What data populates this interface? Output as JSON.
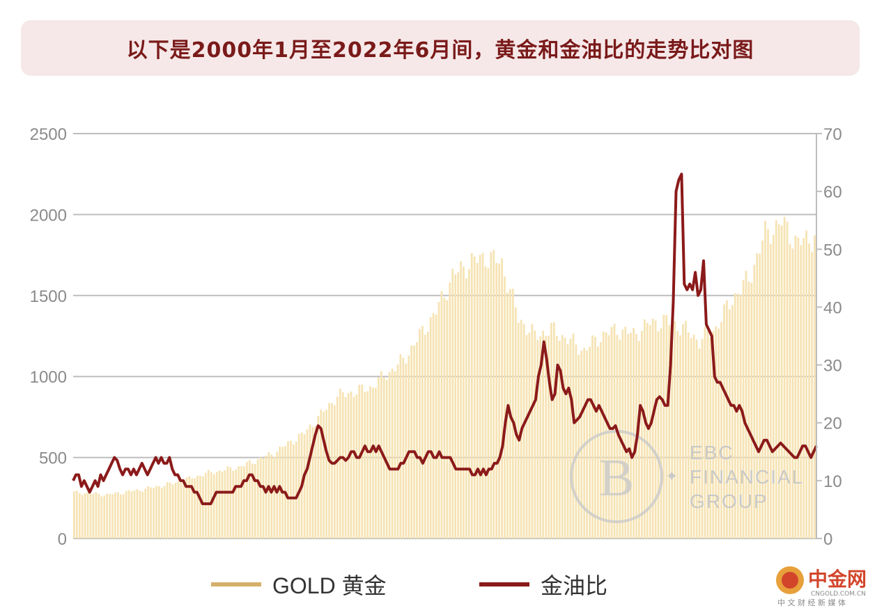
{
  "title": "以下是2000年1月至2022年6月间，黄金和金油比的走势比对图",
  "legend": {
    "gold_label": "GOLD 黄金",
    "ratio_label": "金油比"
  },
  "colors": {
    "gold": "#f6e3b3",
    "gold_legend": "#d4b06a",
    "ratio": "#8b1a1a",
    "grid": "#bdbdbd"
  },
  "watermark": {
    "brand_line1": "EBC",
    "brand_line2": "FINANCIAL",
    "brand_line3": "GROUP"
  },
  "site_logo": {
    "name": "中金网",
    "domain": "CNGOLD.COM.CN",
    "tagline": "中 文 财 经 新 媒 体"
  },
  "chart_data": {
    "type": "bar+line",
    "period": "2000-01 to 2022-06 (monthly)",
    "left_axis": {
      "ticks": [
        "0",
        "500",
        "1000",
        "1500",
        "2000",
        "2500"
      ],
      "range": [
        0,
        2500
      ]
    },
    "right_axis": {
      "ticks": [
        "0",
        "10",
        "20",
        "30",
        "40",
        "50",
        "60",
        "70"
      ],
      "range": [
        0,
        70
      ]
    },
    "series": [
      {
        "name": "GOLD 黄金",
        "type": "bar",
        "axis": "left",
        "keypoints": [
          [
            0,
            285
          ],
          [
            12,
            270
          ],
          [
            24,
            300
          ],
          [
            36,
            340
          ],
          [
            48,
            400
          ],
          [
            60,
            440
          ],
          [
            72,
            520
          ],
          [
            84,
            650
          ],
          [
            96,
            880
          ],
          [
            108,
            930
          ],
          [
            120,
            1100
          ],
          [
            132,
            1400
          ],
          [
            138,
            1620
          ],
          [
            144,
            1700
          ],
          [
            150,
            1740
          ],
          [
            156,
            1700
          ],
          [
            162,
            1360
          ],
          [
            168,
            1250
          ],
          [
            174,
            1290
          ],
          [
            180,
            1230
          ],
          [
            186,
            1160
          ],
          [
            192,
            1250
          ],
          [
            198,
            1290
          ],
          [
            204,
            1260
          ],
          [
            210,
            1330
          ],
          [
            216,
            1340
          ],
          [
            222,
            1300
          ],
          [
            228,
            1220
          ],
          [
            234,
            1300
          ],
          [
            240,
            1480
          ],
          [
            246,
            1600
          ],
          [
            252,
            1880
          ],
          [
            258,
            1950
          ],
          [
            264,
            1820
          ],
          [
            270,
            1870
          ]
        ]
      },
      {
        "name": "金油比",
        "type": "line",
        "axis": "right",
        "points": [
          [
            0,
            10
          ],
          [
            1,
            11
          ],
          [
            2,
            11
          ],
          [
            3,
            9
          ],
          [
            4,
            10
          ],
          [
            5,
            9
          ],
          [
            6,
            8
          ],
          [
            7,
            9
          ],
          [
            8,
            10
          ],
          [
            9,
            9
          ],
          [
            10,
            11
          ],
          [
            11,
            10
          ],
          [
            12,
            11
          ],
          [
            13,
            12
          ],
          [
            14,
            13
          ],
          [
            15,
            14
          ],
          [
            16,
            13.5
          ],
          [
            17,
            12
          ],
          [
            18,
            11
          ],
          [
            19,
            12
          ],
          [
            20,
            12
          ],
          [
            21,
            11
          ],
          [
            22,
            12
          ],
          [
            23,
            11
          ],
          [
            24,
            12
          ],
          [
            25,
            13
          ],
          [
            26,
            12
          ],
          [
            27,
            11
          ],
          [
            28,
            12
          ],
          [
            29,
            13
          ],
          [
            30,
            14
          ],
          [
            31,
            13
          ],
          [
            32,
            14
          ],
          [
            33,
            13
          ],
          [
            34,
            13
          ],
          [
            35,
            14
          ],
          [
            36,
            12
          ],
          [
            37,
            11
          ],
          [
            38,
            11
          ],
          [
            39,
            10
          ],
          [
            40,
            10
          ],
          [
            41,
            9
          ],
          [
            42,
            9
          ],
          [
            43,
            9
          ],
          [
            44,
            8
          ],
          [
            45,
            8
          ],
          [
            46,
            7
          ],
          [
            47,
            6
          ],
          [
            48,
            6
          ],
          [
            49,
            6
          ],
          [
            50,
            6
          ],
          [
            51,
            7
          ],
          [
            52,
            8
          ],
          [
            53,
            8
          ],
          [
            54,
            8
          ],
          [
            55,
            8
          ],
          [
            56,
            8
          ],
          [
            57,
            8
          ],
          [
            58,
            8
          ],
          [
            59,
            9
          ],
          [
            60,
            9
          ],
          [
            61,
            9
          ],
          [
            62,
            10
          ],
          [
            63,
            10
          ],
          [
            64,
            11
          ],
          [
            65,
            11
          ],
          [
            66,
            10
          ],
          [
            67,
            10
          ],
          [
            68,
            9
          ],
          [
            69,
            9
          ],
          [
            70,
            8
          ],
          [
            71,
            9
          ],
          [
            72,
            8
          ],
          [
            73,
            9
          ],
          [
            74,
            8
          ],
          [
            75,
            9
          ],
          [
            76,
            8
          ],
          [
            77,
            8
          ],
          [
            78,
            7
          ],
          [
            79,
            7
          ],
          [
            80,
            7
          ],
          [
            81,
            7
          ],
          [
            82,
            8
          ],
          [
            83,
            9
          ],
          [
            84,
            11
          ],
          [
            85,
            12
          ],
          [
            86,
            14
          ],
          [
            87,
            16
          ],
          [
            88,
            18
          ],
          [
            89,
            19.5
          ],
          [
            90,
            19
          ],
          [
            91,
            17
          ],
          [
            92,
            15
          ],
          [
            93,
            13.5
          ],
          [
            94,
            13
          ],
          [
            95,
            13
          ],
          [
            96,
            13.5
          ],
          [
            97,
            14
          ],
          [
            98,
            14
          ],
          [
            99,
            13.5
          ],
          [
            100,
            14
          ],
          [
            101,
            15
          ],
          [
            102,
            15
          ],
          [
            103,
            14
          ],
          [
            104,
            14
          ],
          [
            105,
            15
          ],
          [
            106,
            16
          ],
          [
            107,
            15
          ],
          [
            108,
            15
          ],
          [
            109,
            16
          ],
          [
            110,
            15
          ],
          [
            111,
            16
          ],
          [
            112,
            15
          ],
          [
            113,
            14
          ],
          [
            114,
            13
          ],
          [
            115,
            12
          ],
          [
            116,
            12
          ],
          [
            117,
            12
          ],
          [
            118,
            12
          ],
          [
            119,
            13
          ],
          [
            120,
            13
          ],
          [
            121,
            14
          ],
          [
            122,
            15
          ],
          [
            123,
            15
          ],
          [
            124,
            15
          ],
          [
            125,
            14
          ],
          [
            126,
            14
          ],
          [
            127,
            13
          ],
          [
            128,
            14
          ],
          [
            129,
            15
          ],
          [
            130,
            15
          ],
          [
            131,
            14
          ],
          [
            132,
            14
          ],
          [
            133,
            15
          ],
          [
            134,
            14
          ],
          [
            135,
            14
          ],
          [
            136,
            14
          ],
          [
            137,
            14
          ],
          [
            138,
            13
          ],
          [
            139,
            12
          ],
          [
            140,
            12
          ],
          [
            141,
            12
          ],
          [
            142,
            12
          ],
          [
            143,
            12
          ],
          [
            144,
            12
          ],
          [
            145,
            11
          ],
          [
            146,
            11
          ],
          [
            147,
            12
          ],
          [
            148,
            11
          ],
          [
            149,
            12
          ],
          [
            150,
            11
          ],
          [
            151,
            12
          ],
          [
            152,
            12
          ],
          [
            153,
            13
          ],
          [
            154,
            13
          ],
          [
            155,
            14
          ],
          [
            156,
            16
          ],
          [
            157,
            20
          ],
          [
            158,
            23
          ],
          [
            159,
            21
          ],
          [
            160,
            20
          ],
          [
            161,
            18
          ],
          [
            162,
            17
          ],
          [
            163,
            19
          ],
          [
            164,
            20
          ],
          [
            165,
            21
          ],
          [
            166,
            22
          ],
          [
            167,
            23
          ],
          [
            168,
            24
          ],
          [
            169,
            28
          ],
          [
            170,
            30
          ],
          [
            171,
            34
          ],
          [
            172,
            31
          ],
          [
            173,
            27
          ],
          [
            174,
            24
          ],
          [
            175,
            25
          ],
          [
            176,
            30
          ],
          [
            177,
            29
          ],
          [
            178,
            26
          ],
          [
            179,
            25
          ],
          [
            180,
            26
          ],
          [
            181,
            24
          ],
          [
            182,
            20
          ],
          [
            183,
            20.5
          ],
          [
            184,
            21
          ],
          [
            185,
            22
          ],
          [
            186,
            23
          ],
          [
            187,
            24
          ],
          [
            188,
            24
          ],
          [
            189,
            23
          ],
          [
            190,
            22
          ],
          [
            191,
            23
          ],
          [
            192,
            22
          ],
          [
            193,
            21
          ],
          [
            194,
            20
          ],
          [
            195,
            19
          ],
          [
            196,
            19
          ],
          [
            197,
            19.5
          ],
          [
            198,
            18
          ],
          [
            199,
            17
          ],
          [
            200,
            16
          ],
          [
            201,
            15
          ],
          [
            202,
            15.5
          ],
          [
            203,
            14
          ],
          [
            204,
            15
          ],
          [
            205,
            18
          ],
          [
            206,
            23
          ],
          [
            207,
            22
          ],
          [
            208,
            20
          ],
          [
            209,
            19
          ],
          [
            210,
            20
          ],
          [
            211,
            22
          ],
          [
            212,
            24
          ],
          [
            213,
            24.5
          ],
          [
            214,
            24
          ],
          [
            215,
            23
          ],
          [
            216,
            23
          ],
          [
            217,
            30
          ],
          [
            218,
            41
          ],
          [
            219,
            60
          ],
          [
            220,
            62
          ],
          [
            221,
            63
          ],
          [
            222,
            44
          ],
          [
            223,
            43
          ],
          [
            224,
            44
          ],
          [
            225,
            43
          ],
          [
            226,
            46
          ],
          [
            227,
            42
          ],
          [
            228,
            43
          ],
          [
            229,
            48
          ],
          [
            230,
            37
          ],
          [
            231,
            36
          ],
          [
            232,
            35
          ],
          [
            233,
            28
          ],
          [
            234,
            27
          ],
          [
            235,
            27
          ],
          [
            236,
            26
          ],
          [
            237,
            25
          ],
          [
            238,
            24
          ],
          [
            239,
            23
          ],
          [
            240,
            23
          ],
          [
            241,
            22
          ],
          [
            242,
            23
          ],
          [
            243,
            22
          ],
          [
            244,
            20
          ],
          [
            245,
            19
          ],
          [
            246,
            18
          ],
          [
            247,
            17
          ],
          [
            248,
            16
          ],
          [
            249,
            15
          ],
          [
            250,
            16
          ],
          [
            251,
            17
          ],
          [
            252,
            17
          ],
          [
            253,
            16
          ],
          [
            254,
            15
          ],
          [
            255,
            15.5
          ],
          [
            256,
            16
          ],
          [
            257,
            16.5
          ],
          [
            258,
            16
          ],
          [
            259,
            15.5
          ],
          [
            260,
            15
          ],
          [
            261,
            14.5
          ],
          [
            262,
            14
          ],
          [
            263,
            14
          ],
          [
            264,
            15
          ],
          [
            265,
            16
          ],
          [
            266,
            16
          ],
          [
            267,
            15
          ],
          [
            268,
            14
          ],
          [
            269,
            15
          ],
          [
            270,
            16
          ]
        ]
      }
    ],
    "xlabel": "",
    "ylabel_left": "",
    "ylabel_right": ""
  }
}
